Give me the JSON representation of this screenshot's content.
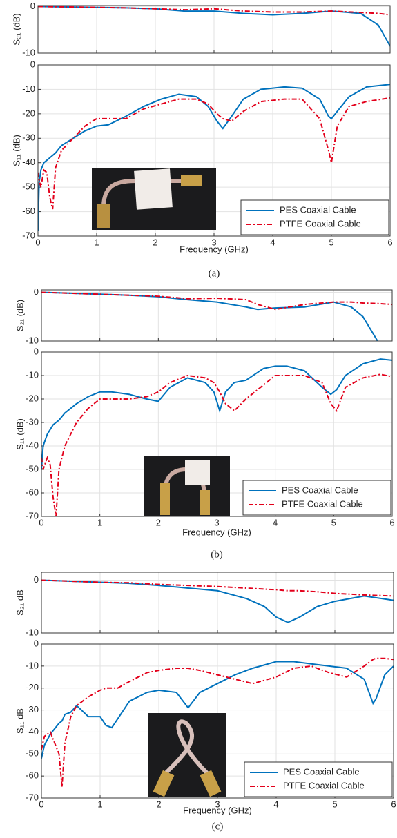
{
  "chart_data": [
    {
      "type": "line",
      "ylabel": "S₂₁ (dB)",
      "xlim": [
        0,
        6
      ],
      "xticks": [
        0,
        1,
        2,
        3,
        4,
        5,
        6
      ],
      "show_xtick_labels": false,
      "ylim": [
        -10,
        0.2
      ],
      "yticks": [
        0,
        -10
      ],
      "grid": true,
      "x": [
        0,
        0.5,
        1,
        1.5,
        2,
        2.5,
        3,
        3.5,
        4,
        4.5,
        5,
        5.5,
        5.8,
        6
      ],
      "series": [
        {
          "color": "#0072bd",
          "linestyle": "solid",
          "values": [
            0,
            -0.1,
            -0.2,
            -0.3,
            -0.5,
            -1,
            -1,
            -1.5,
            -1.8,
            -1.5,
            -1,
            -1.5,
            -4,
            -8.5
          ]
        },
        {
          "color": "#e3001b",
          "linestyle": "dashdot",
          "values": [
            0,
            -0.1,
            -0.2,
            -0.3,
            -0.5,
            -0.7,
            -0.5,
            -1,
            -1.2,
            -1.2,
            -1,
            -1.3,
            -1.5,
            -1.8
          ]
        }
      ]
    },
    {
      "type": "line",
      "ylabel": "S₁₁ (dB)",
      "xlabel": "Frequency (GHz)",
      "caption": "(a)",
      "xlim": [
        0,
        6
      ],
      "xticks": [
        0,
        1,
        2,
        3,
        4,
        5,
        6
      ],
      "show_xtick_labels": true,
      "ylim": [
        -70,
        0
      ],
      "yticks": [
        0,
        -10,
        -20,
        -30,
        -40,
        -50,
        -60,
        -70
      ],
      "grid": true,
      "legend": "lower right",
      "x": [
        0,
        0.02,
        0.05,
        0.1,
        0.15,
        0.2,
        0.25,
        0.3,
        0.4,
        0.6,
        0.8,
        1.0,
        1.2,
        1.5,
        1.8,
        2.1,
        2.4,
        2.7,
        2.9,
        3.05,
        3.15,
        3.3,
        3.5,
        3.8,
        4.2,
        4.5,
        4.8,
        4.95,
        5.0,
        5.1,
        5.3,
        5.6,
        6.0
      ],
      "series": [
        {
          "name": "PES Coaxial Cable",
          "color": "#0072bd",
          "linestyle": "solid",
          "values": [
            -68,
            -48,
            -43,
            -40,
            -39,
            -38,
            -37,
            -36,
            -33,
            -30,
            -27,
            -25,
            -24.5,
            -21,
            -17,
            -14,
            -12,
            -13,
            -17,
            -23,
            -26,
            -21,
            -14,
            -10,
            -9,
            -9.5,
            -14,
            -21,
            -22,
            -19,
            -13,
            -9,
            -8
          ]
        },
        {
          "name": "PTFE Coaxial Cable",
          "color": "#e3001b",
          "linestyle": "dashdot",
          "values": [
            -44,
            -47,
            -50,
            -43,
            -44,
            -54,
            -59,
            -42,
            -35,
            -30,
            -25,
            -22,
            -22,
            -22,
            -18,
            -16,
            -14,
            -14,
            -16,
            -20,
            -22,
            -23,
            -19,
            -15,
            -14,
            -14,
            -22,
            -35,
            -40,
            -25,
            -17,
            -15,
            -13.5
          ]
        }
      ]
    },
    {
      "type": "line",
      "ylabel": "S₂₁ (dB)",
      "xlim": [
        0,
        6
      ],
      "xticks": [
        0,
        1,
        2,
        3,
        4,
        5,
        6
      ],
      "show_xtick_labels": false,
      "ylim": [
        -10,
        0.5
      ],
      "yticks": [
        0,
        -10
      ],
      "grid": true,
      "x": [
        0,
        0.5,
        1,
        1.5,
        2,
        2.5,
        3,
        3.5,
        3.7,
        4,
        4.5,
        5,
        5.3,
        5.5,
        5.75,
        6
      ],
      "series": [
        {
          "color": "#0072bd",
          "linestyle": "solid",
          "values": [
            0,
            -0.2,
            -0.4,
            -0.6,
            -0.9,
            -1.5,
            -2,
            -3,
            -3.5,
            -3.2,
            -3,
            -2,
            -3,
            -5,
            -10,
            null
          ]
        },
        {
          "color": "#e3001b",
          "linestyle": "dashdot",
          "values": [
            0,
            -0.2,
            -0.4,
            -0.6,
            -0.8,
            -1.3,
            -1.2,
            -1.5,
            -2.5,
            -3.5,
            -2.5,
            -2,
            -2,
            -2.2,
            -2.3,
            -2.5
          ]
        }
      ]
    },
    {
      "type": "line",
      "ylabel": "S₁₁ (dB)",
      "xlabel": "Frequency (GHz)",
      "caption": "(b)",
      "xlim": [
        0,
        6
      ],
      "xticks": [
        0,
        1,
        2,
        3,
        4,
        5,
        6
      ],
      "show_xtick_labels": true,
      "ylim": [
        -70,
        0
      ],
      "yticks": [
        0,
        -10,
        -20,
        -30,
        -40,
        -50,
        -60,
        -70
      ],
      "grid": true,
      "legend": "lower right",
      "x": [
        0,
        0.03,
        0.1,
        0.15,
        0.2,
        0.25,
        0.3,
        0.4,
        0.6,
        0.8,
        1.0,
        1.2,
        1.5,
        1.8,
        2.0,
        2.2,
        2.5,
        2.8,
        2.95,
        3.05,
        3.15,
        3.3,
        3.5,
        3.8,
        4.0,
        4.2,
        4.5,
        4.8,
        4.95,
        5.05,
        5.2,
        5.5,
        5.8,
        6.0
      ],
      "series": [
        {
          "name": "PES Coaxial Cable",
          "color": "#0072bd",
          "linestyle": "solid",
          "values": [
            -50,
            -40,
            -35,
            -33,
            -31,
            -30,
            -29,
            -26,
            -22,
            -19,
            -17,
            -17,
            -18,
            -20,
            -21,
            -15,
            -11,
            -13,
            -17,
            -25,
            -17,
            -13,
            -12,
            -7,
            -6,
            -6,
            -8,
            -15,
            -18,
            -16,
            -10,
            -5,
            -3,
            -3.5
          ]
        },
        {
          "name": "PTFE Coaxial Cable",
          "color": "#e3001b",
          "linestyle": "dashdot",
          "values": [
            -45,
            -50,
            -45,
            -48,
            -62,
            -70,
            -50,
            -40,
            -30,
            -24,
            -20,
            -20,
            -20,
            -19,
            -17,
            -13,
            -10,
            -11,
            -13,
            -17,
            -22,
            -25,
            -20,
            -14,
            -10,
            -10,
            -10,
            -13,
            -22,
            -25,
            -15,
            -11,
            -9.5,
            -10.5
          ]
        }
      ]
    },
    {
      "type": "line",
      "ylabel": "S₂₁ dB",
      "xlim": [
        0,
        6
      ],
      "xticks": [
        0,
        1,
        2,
        3,
        4,
        5,
        6
      ],
      "show_xtick_labels": false,
      "ylim": [
        -10,
        1.5
      ],
      "yticks": [
        0,
        -10
      ],
      "grid": true,
      "x": [
        0,
        0.5,
        1,
        1.5,
        2,
        2.5,
        3,
        3.5,
        3.8,
        4.0,
        4.2,
        4.4,
        4.7,
        5,
        5.5,
        6
      ],
      "series": [
        {
          "color": "#0072bd",
          "linestyle": "solid",
          "values": [
            0,
            -0.2,
            -0.4,
            -0.6,
            -1,
            -1.5,
            -2,
            -3.5,
            -5,
            -7,
            -8,
            -7,
            -5,
            -4,
            -3,
            -3.8
          ]
        },
        {
          "color": "#e3001b",
          "linestyle": "dashdot",
          "values": [
            0,
            -0.2,
            -0.4,
            -0.5,
            -0.8,
            -1,
            -1.2,
            -1.5,
            -1.7,
            -1.8,
            -2,
            -2,
            -2.2,
            -2.5,
            -2.8,
            -3
          ]
        }
      ]
    },
    {
      "type": "line",
      "ylabel": "S₁₁ dB",
      "xlabel": "Frequency (GHz)",
      "caption": "(c)",
      "xlim": [
        0,
        6
      ],
      "xticks": [
        0,
        1,
        2,
        3,
        4,
        5,
        6
      ],
      "show_xtick_labels": true,
      "ylim": [
        -70,
        0
      ],
      "yticks": [
        0,
        -10,
        -20,
        -30,
        -40,
        -50,
        -60,
        -70
      ],
      "grid": true,
      "legend": "lower right",
      "x": [
        0,
        0.05,
        0.15,
        0.3,
        0.35,
        0.4,
        0.5,
        0.6,
        0.8,
        1.0,
        1.1,
        1.2,
        1.3,
        1.5,
        1.8,
        2.0,
        2.3,
        2.5,
        2.7,
        3.0,
        3.3,
        3.6,
        4.0,
        4.3,
        4.6,
        4.9,
        5.2,
        5.5,
        5.65,
        5.7,
        5.85,
        6.0
      ],
      "series": [
        {
          "name": "PES Coaxial Cable",
          "color": "#0072bd",
          "linestyle": "solid",
          "values": [
            -52,
            -46,
            -41,
            -36,
            -35,
            -32,
            -31,
            -28,
            -33,
            -33,
            -37,
            -38,
            -34,
            -26,
            -22,
            -21,
            -22,
            -29,
            -22,
            -18,
            -14,
            -11,
            -8,
            -8,
            -9,
            -10,
            -11,
            -16,
            -27,
            -25,
            -14,
            -10
          ]
        },
        {
          "name": "PTFE Coaxial Cable",
          "color": "#e3001b",
          "linestyle": "dashdot",
          "values": [
            -48,
            -42,
            -40,
            -50,
            -65,
            -45,
            -33,
            -28,
            -24,
            -21,
            -20,
            -20,
            -20,
            -17,
            -13,
            -12,
            -11,
            -11,
            -12,
            -14,
            -16,
            -18,
            -15,
            -11,
            -10,
            -13,
            -15,
            -10,
            -7,
            -6.5,
            -6.5,
            -7
          ]
        }
      ]
    }
  ]
}
